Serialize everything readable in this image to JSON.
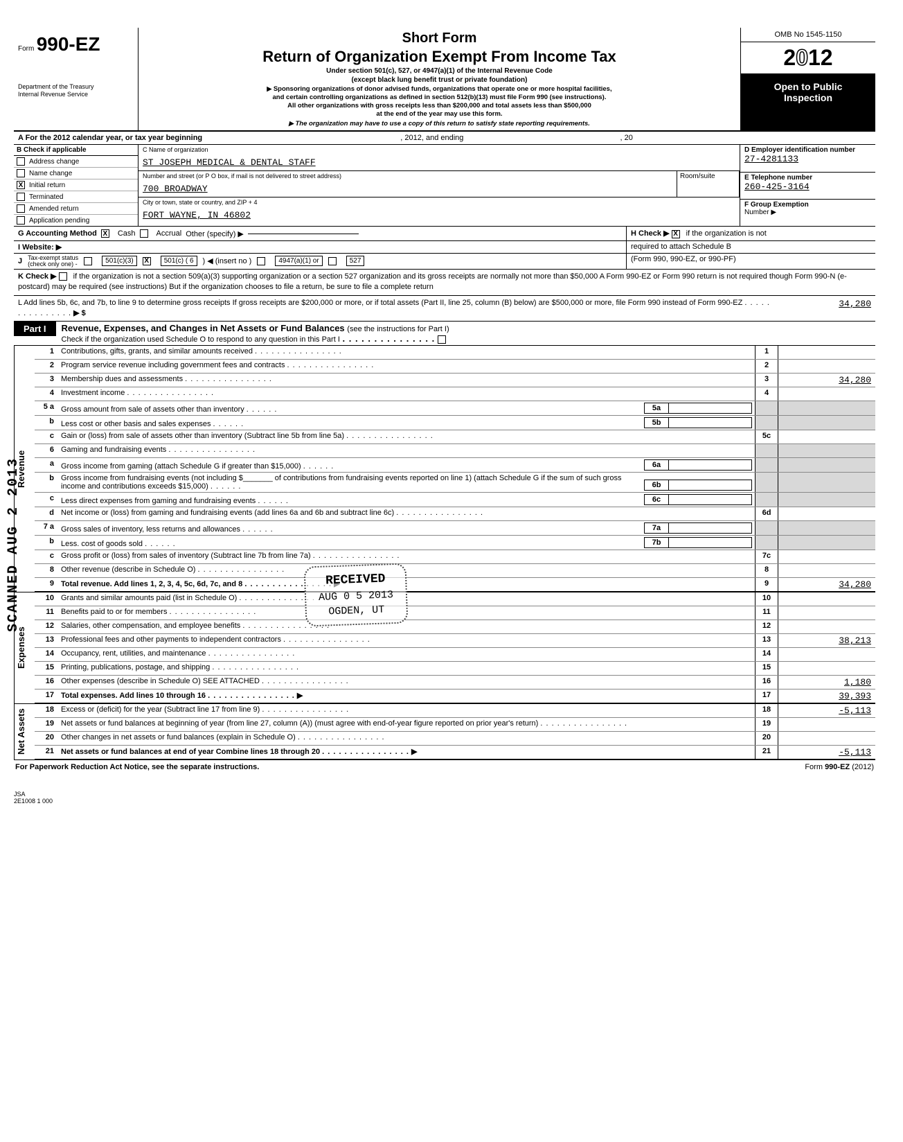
{
  "header": {
    "form_label": "Form",
    "form_number": "990-EZ",
    "dept1": "Department of the Treasury",
    "dept2": "Internal Revenue Service",
    "short_form": "Short Form",
    "title": "Return of Organization Exempt From Income Tax",
    "sub1": "Under section 501(c), 527, or 4947(a)(1) of the Internal Revenue Code",
    "sub2": "(except black lung benefit trust or private foundation)",
    "instr1": "Sponsoring organizations of donor advised funds, organizations that operate one or more hospital facilities,",
    "instr2": "and certain controlling organizations as defined in section 512(b)(13) must file Form 990 (see instructions).",
    "instr3": "All other organizations with gross receipts less than $200,000 and total assets less than $500,000",
    "instr4": "at the end of the year may use this form.",
    "instr5": "The organization may have to use a copy of this return to satisfy state reporting requirements.",
    "omb": "OMB No 1545-1150",
    "year_prefix": "2",
    "year_outline": "0",
    "year_suffix": "12",
    "open_public1": "Open to Public",
    "open_public2": "Inspection"
  },
  "line_a": {
    "text_left": "A  For the 2012 calendar year, or tax year beginning",
    "text_mid": ", 2012, and ending",
    "text_right": ", 20"
  },
  "section_b": {
    "header": "B  Check if applicable",
    "items": [
      {
        "label": "Address change",
        "checked": false
      },
      {
        "label": "Name change",
        "checked": false
      },
      {
        "label": "Initial return",
        "checked": true
      },
      {
        "label": "Terminated",
        "checked": false
      },
      {
        "label": "Amended return",
        "checked": false
      },
      {
        "label": "Application pending",
        "checked": false
      }
    ]
  },
  "section_c": {
    "name_label": "C Name of organization",
    "name_value": "ST JOSEPH MEDICAL & DENTAL STAFF",
    "street_label": "Number and street (or P O  box, if mail is not delivered to street address)",
    "street_value": "700 BROADWAY",
    "city_label": "City or town, state or country, and ZIP + 4",
    "city_value": "FORT WAYNE, IN  46802",
    "room_label": "Room/suite"
  },
  "section_d": {
    "d_label": "D  Employer identification number",
    "d_value": "27-4281133",
    "e_label": "E  Telephone number",
    "e_value": "260-425-3164",
    "f_label": "F  Group Exemption",
    "f_label2": "Number ▶"
  },
  "row_g": {
    "label": "G  Accounting Method",
    "cash": "Cash",
    "accrual": "Accrual",
    "other": "Other (specify) ▶",
    "h_label": "H Check ▶",
    "h_text": "if the organization is not",
    "h_text2": "required to attach Schedule B",
    "h_text3": "(Form 990, 990-EZ, or 990-PF)"
  },
  "row_i": {
    "website_label": "I   Website: ▶",
    "j_label": "J",
    "j_text": "Tax-exempt status",
    "j_text2": "(check only one) -",
    "opt1": "501(c)(3)",
    "opt2": "501(c) ( 6",
    "opt2b": ") ◀ (insert no )",
    "opt3": "4947(a)(1) or",
    "opt4": "527"
  },
  "row_k": {
    "label": "K Check ▶",
    "text": "if the organization is not a section 509(a)(3) supporting organization or a section 527 organization and its gross receipts are normally not more than $50,000  A Form 990-EZ or Form 990 return is not required though Form 990-N (e-postcard) may be required (see instructions)  But if the organization chooses to file a return, be sure to file a complete return"
  },
  "row_l": {
    "text": "L  Add lines 5b, 6c, and 7b, to line 9 to determine gross receipts  If gross receipts are $200,000 or more, or if total assets (Part II, line 25, column (B) below) are $500,000 or more, file Form 990 instead of Form 990-EZ",
    "arrow": "▶  $",
    "amount": "34,280"
  },
  "part1": {
    "tab": "Part I",
    "title": "Revenue, Expenses, and Changes in Net Assets or Fund Balances",
    "title2": "(see the instructions for Part I)",
    "sub": "Check if the organization used Schedule O to respond to any question in this Part I"
  },
  "revenue": {
    "side": "Revenue",
    "rows": [
      {
        "n": "1",
        "desc": "Contributions, gifts, grants, and similar amounts received",
        "rn": "1",
        "amt": ""
      },
      {
        "n": "2",
        "desc": "Program service revenue including government fees and contracts",
        "rn": "2",
        "amt": ""
      },
      {
        "n": "3",
        "desc": "Membership dues and assessments",
        "rn": "3",
        "amt": "34,280"
      },
      {
        "n": "4",
        "desc": "Investment income",
        "rn": "4",
        "amt": ""
      },
      {
        "n": "5 a",
        "desc": "Gross amount from sale of assets other than inventory",
        "inset": "5a",
        "rn": "",
        "amt": "",
        "shaded": true
      },
      {
        "n": "b",
        "desc": "Less  cost or other basis and sales expenses",
        "inset": "5b",
        "rn": "",
        "amt": "",
        "shaded": true
      },
      {
        "n": "c",
        "desc": "Gain or (loss) from sale of assets other than inventory (Subtract line 5b from line 5a)",
        "rn": "5c",
        "amt": ""
      },
      {
        "n": "6",
        "desc": "Gaming and fundraising events",
        "rn": "",
        "amt": "",
        "shaded": true
      },
      {
        "n": "a",
        "desc": "Gross income from gaming (attach Schedule G if greater than $15,000)",
        "inset": "6a",
        "rn": "",
        "amt": "",
        "shaded": true
      },
      {
        "n": "b",
        "desc": "Gross income from fundraising events (not including $_______ of contributions from fundraising events reported on line 1) (attach Schedule G if the sum of such gross income and contributions exceeds $15,000)",
        "inset": "6b",
        "rn": "",
        "amt": "",
        "shaded": true
      },
      {
        "n": "c",
        "desc": "Less  direct expenses from gaming and fundraising events",
        "inset": "6c",
        "rn": "",
        "amt": "",
        "shaded": true
      },
      {
        "n": "d",
        "desc": "Net income or (loss) from gaming and fundraising events (add lines 6a and 6b and subtract line 6c)",
        "rn": "6d",
        "amt": ""
      },
      {
        "n": "7 a",
        "desc": "Gross sales of inventory, less returns and allowances",
        "inset": "7a",
        "rn": "",
        "amt": "",
        "shaded": true
      },
      {
        "n": "b",
        "desc": "Less. cost of goods sold",
        "inset": "7b",
        "rn": "",
        "amt": "",
        "shaded": true
      },
      {
        "n": "c",
        "desc": "Gross profit or (loss) from sales of inventory (Subtract line 7b from line 7a)",
        "rn": "7c",
        "amt": ""
      },
      {
        "n": "8",
        "desc": "Other revenue (describe in Schedule O)",
        "rn": "8",
        "amt": ""
      },
      {
        "n": "9",
        "desc": "Total revenue. Add lines 1, 2, 3, 4, 5c, 6d, 7c, and 8",
        "rn": "9",
        "amt": "34,280",
        "bold": true
      }
    ]
  },
  "expenses": {
    "side": "Expenses",
    "rows": [
      {
        "n": "10",
        "desc": "Grants and similar amounts paid (list in Schedule O)",
        "rn": "10",
        "amt": ""
      },
      {
        "n": "11",
        "desc": "Benefits paid to or for members",
        "rn": "11",
        "amt": ""
      },
      {
        "n": "12",
        "desc": "Salaries, other compensation, and employee benefits",
        "rn": "12",
        "amt": ""
      },
      {
        "n": "13",
        "desc": "Professional fees and other payments to independent contractors",
        "rn": "13",
        "amt": "38,213"
      },
      {
        "n": "14",
        "desc": "Occupancy, rent, utilities, and maintenance",
        "rn": "14",
        "amt": ""
      },
      {
        "n": "15",
        "desc": "Printing, publications, postage, and shipping",
        "rn": "15",
        "amt": ""
      },
      {
        "n": "16",
        "desc": "Other expenses (describe in Schedule O)   SEE ATTACHED",
        "rn": "16",
        "amt": "1,180"
      },
      {
        "n": "17",
        "desc": "Total expenses. Add lines 10 through 16",
        "rn": "17",
        "amt": "39,393",
        "bold": true
      }
    ]
  },
  "netassets": {
    "side": "Net Assets",
    "rows": [
      {
        "n": "18",
        "desc": "Excess or (deficit) for the year (Subtract line 17 from line 9)",
        "rn": "18",
        "amt": "-5,113"
      },
      {
        "n": "19",
        "desc": "Net assets or fund balances at beginning of year (from line 27, column (A)) (must agree with end-of-year figure reported on prior year's return)",
        "rn": "19",
        "amt": ""
      },
      {
        "n": "20",
        "desc": "Other changes in net assets or fund balances (explain in Schedule O)",
        "rn": "20",
        "amt": ""
      },
      {
        "n": "21",
        "desc": "Net assets or fund balances at end of year Combine lines 18 through 20",
        "rn": "21",
        "amt": "-5,113",
        "bold": true
      }
    ]
  },
  "stamp": {
    "l1": "RECEIVED",
    "l2": "AUG 0 5 2013",
    "l3": "OGDEN, UT"
  },
  "scanned": "SCANNED  AUG 2 2013",
  "footer": {
    "left": "For Paperwork Reduction Act Notice, see the separate instructions.",
    "right": "Form 990-EZ (2012)",
    "jsa1": "JSA",
    "jsa2": "2E1008 1 000"
  },
  "colors": {
    "black": "#000000",
    "white": "#ffffff",
    "shade": "#d8d8d8"
  }
}
